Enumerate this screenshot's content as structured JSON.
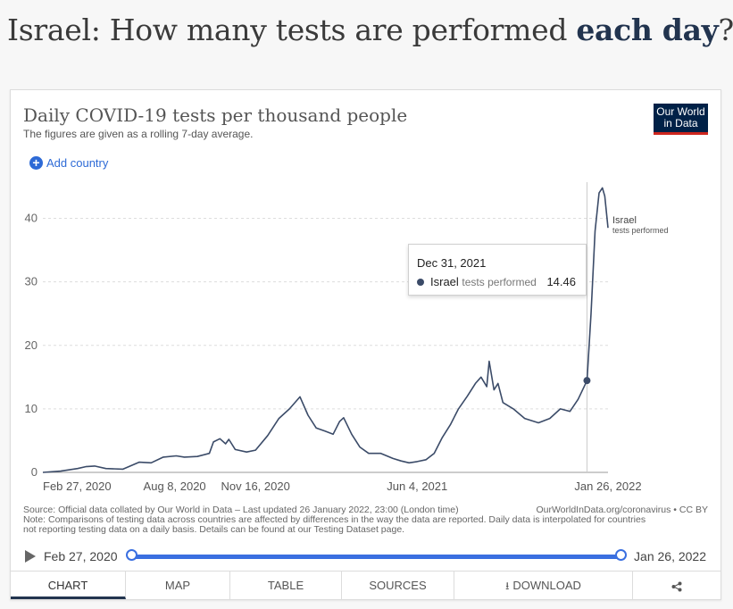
{
  "page_title": {
    "prefix": "Israel: How many tests are performed ",
    "bold": "each day",
    "suffix": "?"
  },
  "logo": {
    "line1": "Our World",
    "line2": "in Data"
  },
  "add_country_label": "Add country",
  "tooltip": {
    "date": "Dec 31, 2021",
    "entity": "Israel",
    "metric": "tests performed",
    "value": "14.46"
  },
  "source": {
    "line1": "Source: Official data collated by Our World in Data – Last updated 26 January 2022, 23:00 (London time)",
    "url": "OurWorldInData.org/coronavirus • CC BY",
    "note1": "Note: Comparisons of testing data across countries are affected by differences in the way the data are reported. Daily data is interpolated for countries",
    "note2": "not reporting testing data on a daily basis. Details can be found at our Testing Dataset page."
  },
  "timeline": {
    "start": "Feb 27, 2020",
    "end": "Jan 26, 2022"
  },
  "tabs": [
    "Chart",
    "Map",
    "Table",
    "Sources",
    "Download",
    ""
  ],
  "colors": {
    "line": "#3b4b68",
    "accent": "#3a6fe0",
    "brand": "#002147",
    "brand_stripe": "#ce261e"
  },
  "chart_data": {
    "type": "line",
    "title": "Daily COVID-19 tests per thousand people",
    "subtitle": "The figures are given as a rolling 7-day average.",
    "xlabel": "",
    "ylabel": "",
    "ylim": [
      0,
      45
    ],
    "yticks": [
      0,
      10,
      20,
      30,
      40
    ],
    "xlim": [
      "2020-02-27",
      "2022-01-26"
    ],
    "xticks": [
      {
        "date": "2020-02-27",
        "label": "Feb 27, 2020"
      },
      {
        "date": "2020-08-08",
        "label": "Aug 8, 2020"
      },
      {
        "date": "2020-11-16",
        "label": "Nov 16, 2020"
      },
      {
        "date": "2021-06-04",
        "label": "Jun 4, 2021"
      },
      {
        "date": "2022-01-26",
        "label": "Jan 26, 2022"
      }
    ],
    "grid": true,
    "series": [
      {
        "name": "Israel",
        "label_suffix": "tests performed",
        "points": [
          [
            "2020-02-27",
            0.0
          ],
          [
            "2020-03-20",
            0.2
          ],
          [
            "2020-04-10",
            0.6
          ],
          [
            "2020-04-20",
            0.9
          ],
          [
            "2020-05-01",
            1.0
          ],
          [
            "2020-05-15",
            0.6
          ],
          [
            "2020-06-05",
            0.5
          ],
          [
            "2020-06-25",
            1.6
          ],
          [
            "2020-07-10",
            1.5
          ],
          [
            "2020-07-25",
            2.4
          ],
          [
            "2020-08-10",
            2.6
          ],
          [
            "2020-08-20",
            2.4
          ],
          [
            "2020-09-05",
            2.5
          ],
          [
            "2020-09-20",
            3.0
          ],
          [
            "2020-09-25",
            4.8
          ],
          [
            "2020-10-03",
            5.3
          ],
          [
            "2020-10-10",
            4.5
          ],
          [
            "2020-10-14",
            5.2
          ],
          [
            "2020-10-22",
            3.6
          ],
          [
            "2020-11-05",
            3.2
          ],
          [
            "2020-11-16",
            3.5
          ],
          [
            "2020-12-01",
            5.8
          ],
          [
            "2020-12-15",
            8.5
          ],
          [
            "2020-12-28",
            10.0
          ],
          [
            "2021-01-10",
            11.9
          ],
          [
            "2021-01-20",
            9.0
          ],
          [
            "2021-01-30",
            7.0
          ],
          [
            "2021-02-10",
            6.5
          ],
          [
            "2021-02-20",
            6.0
          ],
          [
            "2021-02-28",
            8.0
          ],
          [
            "2021-03-05",
            8.6
          ],
          [
            "2021-03-15",
            6.0
          ],
          [
            "2021-03-25",
            4.0
          ],
          [
            "2021-04-05",
            3.0
          ],
          [
            "2021-04-20",
            3.0
          ],
          [
            "2021-05-05",
            2.2
          ],
          [
            "2021-05-15",
            1.8
          ],
          [
            "2021-05-25",
            1.5
          ],
          [
            "2021-06-04",
            1.7
          ],
          [
            "2021-06-15",
            2.0
          ],
          [
            "2021-06-25",
            3.0
          ],
          [
            "2021-07-05",
            5.5
          ],
          [
            "2021-07-15",
            7.5
          ],
          [
            "2021-07-25",
            10.0
          ],
          [
            "2021-08-05",
            12.0
          ],
          [
            "2021-08-15",
            14.0
          ],
          [
            "2021-08-22",
            15.0
          ],
          [
            "2021-08-29",
            13.5
          ],
          [
            "2021-09-01",
            17.5
          ],
          [
            "2021-09-07",
            13.0
          ],
          [
            "2021-09-12",
            14.0
          ],
          [
            "2021-09-18",
            11.0
          ],
          [
            "2021-10-01",
            10.0
          ],
          [
            "2021-10-15",
            8.5
          ],
          [
            "2021-11-01",
            7.8
          ],
          [
            "2021-11-15",
            8.5
          ],
          [
            "2021-11-28",
            10.0
          ],
          [
            "2021-12-10",
            9.6
          ],
          [
            "2021-12-20",
            11.5
          ],
          [
            "2021-12-31",
            14.46
          ],
          [
            "2022-01-05",
            25.0
          ],
          [
            "2022-01-10",
            38.0
          ],
          [
            "2022-01-15",
            44.0
          ],
          [
            "2022-01-19",
            44.8
          ],
          [
            "2022-01-22",
            43.5
          ],
          [
            "2022-01-26",
            38.5
          ]
        ]
      }
    ],
    "highlight": {
      "date": "2021-12-31",
      "value": 14.46
    }
  }
}
